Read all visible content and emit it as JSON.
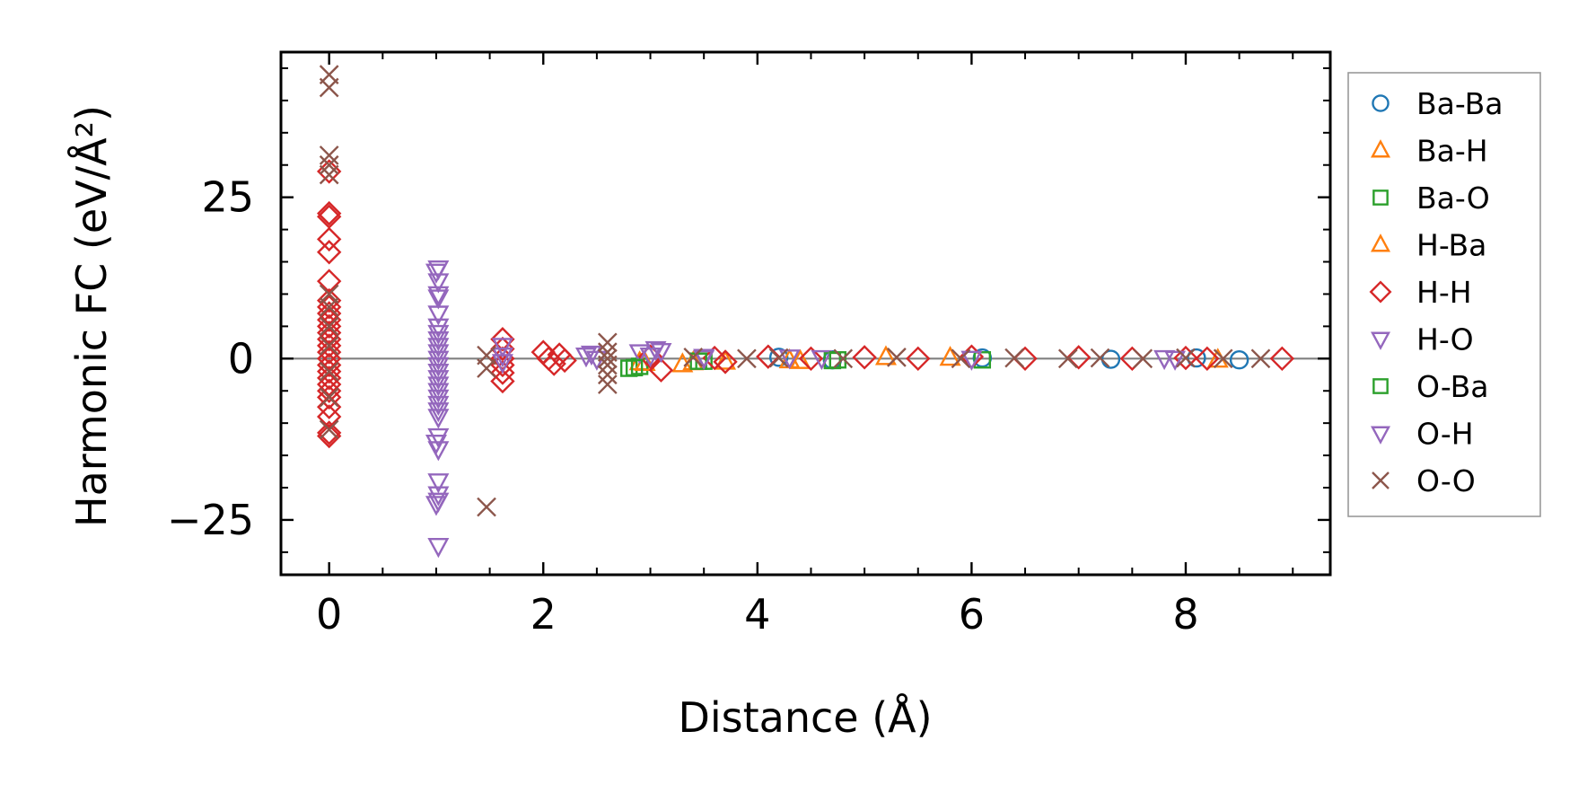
{
  "chart_data": {
    "type": "scatter",
    "xlabel": "Distance (Å)",
    "ylabel": "Harmonic FC (eV/Å²)",
    "xlim": [
      -0.45,
      9.35
    ],
    "ylim": [
      -33.5,
      47.5
    ],
    "x_ticks": [
      0,
      2,
      4,
      6,
      8
    ],
    "x_tick_labels": [
      "0",
      "2",
      "4",
      "6",
      "8"
    ],
    "y_ticks": [
      -25,
      0,
      25
    ],
    "y_tick_labels": [
      "−25",
      "0",
      "25"
    ],
    "zero_line": true,
    "grid": false,
    "legend_position": "outside-right",
    "legend": [
      {
        "label": "Ba-Ba",
        "marker": "circle",
        "color": "#1f77b4"
      },
      {
        "label": "Ba-H",
        "marker": "triangle-up",
        "color": "#ff7f0e"
      },
      {
        "label": "Ba-O",
        "marker": "square",
        "color": "#2ca02c"
      },
      {
        "label": "H-Ba",
        "marker": "triangle-up",
        "color": "#ff7f0e"
      },
      {
        "label": "H-H",
        "marker": "diamond",
        "color": "#d62728"
      },
      {
        "label": "H-O",
        "marker": "triangle-down",
        "color": "#9467bd"
      },
      {
        "label": "O-Ba",
        "marker": "square",
        "color": "#2ca02c"
      },
      {
        "label": "O-H",
        "marker": "triangle-down",
        "color": "#9467bd"
      },
      {
        "label": "O-O",
        "marker": "x",
        "color": "#8c564b"
      }
    ],
    "series": [
      {
        "name": "Ba-Ba",
        "points": [
          [
            4.2,
            0.2
          ],
          [
            4.7,
            -0.2
          ],
          [
            6.1,
            0.1
          ],
          [
            7.3,
            -0.1
          ],
          [
            8.1,
            0.1
          ],
          [
            8.5,
            -0.2
          ]
        ]
      },
      {
        "name": "Ba-H",
        "points": [
          [
            2.9,
            -0.6
          ],
          [
            3.3,
            -0.9
          ],
          [
            3.7,
            -0.5
          ],
          [
            4.3,
            -0.3
          ],
          [
            5.2,
            0.2
          ],
          [
            8.3,
            -0.2
          ]
        ]
      },
      {
        "name": "Ba-O",
        "points": [
          [
            2.8,
            -1.5
          ],
          [
            2.9,
            -1.2
          ],
          [
            3.5,
            -0.4
          ],
          [
            4.7,
            -0.3
          ],
          [
            6.1,
            -0.2
          ]
        ]
      },
      {
        "name": "H-Ba",
        "points": [
          [
            2.95,
            -0.7
          ],
          [
            3.4,
            -0.6
          ],
          [
            4.4,
            -0.4
          ],
          [
            5.8,
            0.1
          ]
        ]
      },
      {
        "name": "H-H",
        "points": [
          [
            0,
            29
          ],
          [
            0,
            22.5
          ],
          [
            0,
            22
          ],
          [
            0,
            18.5
          ],
          [
            0,
            16.5
          ],
          [
            0,
            12
          ],
          [
            0,
            9
          ],
          [
            0,
            8
          ],
          [
            0,
            7
          ],
          [
            0,
            6
          ],
          [
            0,
            5
          ],
          [
            0,
            4
          ],
          [
            0,
            3
          ],
          [
            0,
            2
          ],
          [
            0,
            1
          ],
          [
            0,
            0
          ],
          [
            0,
            -1
          ],
          [
            0,
            -2
          ],
          [
            0,
            -3
          ],
          [
            0,
            -4
          ],
          [
            0,
            -5
          ],
          [
            0,
            -6
          ],
          [
            0,
            -7.5
          ],
          [
            0,
            -9
          ],
          [
            0,
            -11.5
          ],
          [
            0,
            -12
          ],
          [
            1.62,
            3
          ],
          [
            1.62,
            1.5
          ],
          [
            1.62,
            0
          ],
          [
            1.62,
            -1
          ],
          [
            1.62,
            -2.2
          ],
          [
            1.62,
            -3.5
          ],
          [
            2.0,
            1
          ],
          [
            2.05,
            0
          ],
          [
            2.1,
            -0.8
          ],
          [
            2.15,
            0.6
          ],
          [
            2.2,
            -0.3
          ],
          [
            3.0,
            0.3
          ],
          [
            3.1,
            -1.8
          ],
          [
            3.6,
            0.1
          ],
          [
            3.7,
            -0.5
          ],
          [
            4.1,
            0.3
          ],
          [
            4.5,
            0
          ],
          [
            5.0,
            0.2
          ],
          [
            5.5,
            0
          ],
          [
            6.0,
            0.3
          ],
          [
            6.5,
            0
          ],
          [
            7.0,
            0.2
          ],
          [
            7.5,
            0
          ],
          [
            8.0,
            0.1
          ],
          [
            8.2,
            0
          ],
          [
            8.9,
            0
          ]
        ]
      },
      {
        "name": "H-O",
        "points": [
          [
            1.02,
            14
          ],
          [
            1.02,
            12
          ],
          [
            1.02,
            10
          ],
          [
            1.02,
            9.5
          ],
          [
            1.02,
            7
          ],
          [
            1.02,
            5
          ],
          [
            1.02,
            4
          ],
          [
            1.02,
            3
          ],
          [
            1.02,
            2
          ],
          [
            1.02,
            1
          ],
          [
            1.02,
            0
          ],
          [
            1.02,
            -1
          ],
          [
            1.02,
            -2
          ],
          [
            1.02,
            -3
          ],
          [
            1.02,
            -4
          ],
          [
            1.02,
            -5
          ],
          [
            1.02,
            -6
          ],
          [
            1.02,
            -7
          ],
          [
            1.02,
            -8
          ],
          [
            1.02,
            -9
          ],
          [
            1.02,
            -12
          ],
          [
            1.02,
            -14
          ],
          [
            1.02,
            -19
          ],
          [
            1.02,
            -21
          ],
          [
            1.02,
            -22
          ],
          [
            1.02,
            -29
          ],
          [
            1.62,
            2
          ],
          [
            1.62,
            0.5
          ],
          [
            1.62,
            -0.5
          ],
          [
            2.4,
            0.5
          ],
          [
            2.5,
            0
          ],
          [
            2.9,
            1
          ],
          [
            3.0,
            0.5
          ],
          [
            3.1,
            1.2
          ],
          [
            3.5,
            0.3
          ],
          [
            4.6,
            0.1
          ],
          [
            7.8,
            0.1
          ]
        ]
      },
      {
        "name": "O-Ba",
        "points": [
          [
            2.85,
            -1.4
          ],
          [
            3.45,
            -0.4
          ],
          [
            4.75,
            -0.2
          ]
        ]
      },
      {
        "name": "O-H",
        "points": [
          [
            1.0,
            13.5
          ],
          [
            1.0,
            -13
          ],
          [
            1.0,
            -22.5
          ],
          [
            2.45,
            0.8
          ],
          [
            3.05,
            1.5
          ],
          [
            3.5,
            0.1
          ],
          [
            4.3,
            0.2
          ],
          [
            6.0,
            0
          ],
          [
            7.9,
            0
          ]
        ]
      },
      {
        "name": "O-O",
        "points": [
          [
            0,
            44
          ],
          [
            0,
            42
          ],
          [
            0,
            31.5
          ],
          [
            0,
            30
          ],
          [
            0,
            28.5
          ],
          [
            0,
            10
          ],
          [
            0,
            8
          ],
          [
            0,
            5
          ],
          [
            0,
            2
          ],
          [
            0,
            -2
          ],
          [
            0,
            -6
          ],
          [
            0,
            -11
          ],
          [
            1.47,
            0.5
          ],
          [
            1.47,
            -1.5
          ],
          [
            1.47,
            -23
          ],
          [
            2.6,
            2.5
          ],
          [
            2.6,
            1
          ],
          [
            2.6,
            0
          ],
          [
            2.6,
            -1
          ],
          [
            2.6,
            -2.5
          ],
          [
            2.6,
            -4
          ],
          [
            3.4,
            0.2
          ],
          [
            3.9,
            0
          ],
          [
            4.2,
            0.1
          ],
          [
            4.8,
            0
          ],
          [
            5.3,
            0.2
          ],
          [
            5.9,
            0
          ],
          [
            6.4,
            0.1
          ],
          [
            6.9,
            0
          ],
          [
            7.2,
            0.1
          ],
          [
            7.6,
            0
          ],
          [
            8.0,
            0.1
          ],
          [
            8.35,
            0
          ],
          [
            8.7,
            0
          ]
        ]
      }
    ]
  }
}
